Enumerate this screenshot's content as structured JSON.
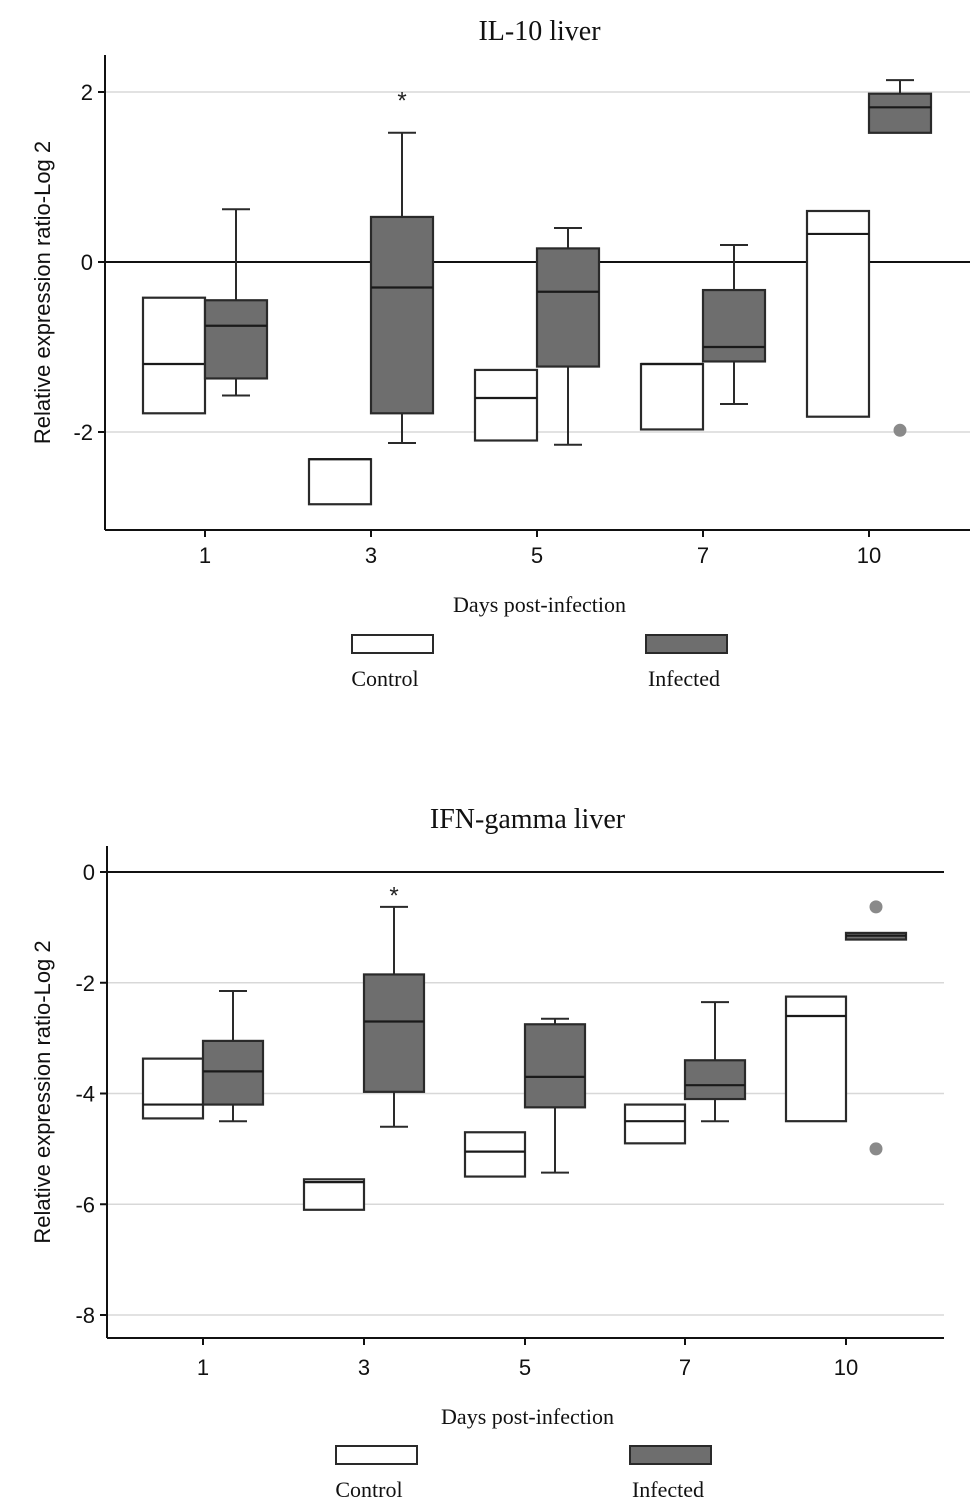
{
  "colors": {
    "control": "#ffffff",
    "infected": "#6e6e6e",
    "outline": "#2a2a2a",
    "grid": "#d8d8d8",
    "outlier": "#8a8a8a"
  },
  "chart_data": [
    {
      "type": "box",
      "title": "IL-10 liver",
      "xlabel": "Days post-infection",
      "ylabel": "Relative expression ratio-Log 2",
      "categories": [
        "1",
        "3",
        "5",
        "7",
        "10"
      ],
      "ylim": [
        -3.15,
        2.4
      ],
      "yticks": [
        2,
        0,
        -2
      ],
      "yticklabels": [
        "2",
        "0",
        "-2"
      ],
      "grid": true,
      "legend": "bottom",
      "annotations": [
        {
          "category": "3",
          "text": "*",
          "y": 1.95
        }
      ],
      "series": [
        {
          "name": "Control",
          "boxes": [
            {
              "q1": -1.78,
              "median": -1.2,
              "q3": -0.42,
              "whisker_low": -1.78,
              "whisker_high": -0.42,
              "outliers": []
            },
            {
              "q1": -2.85,
              "median": -2.32,
              "q3": -2.32,
              "whisker_low": -2.85,
              "whisker_high": -2.32,
              "outliers": []
            },
            {
              "q1": -2.1,
              "median": -1.6,
              "q3": -1.27,
              "whisker_low": -2.1,
              "whisker_high": -1.27,
              "outliers": []
            },
            {
              "q1": -1.97,
              "median": -1.2,
              "q3": -1.2,
              "whisker_low": -1.97,
              "whisker_high": -1.2,
              "outliers": []
            },
            {
              "q1": -1.82,
              "median": 0.33,
              "q3": 0.6,
              "whisker_low": -1.82,
              "whisker_high": 0.6,
              "outliers": []
            }
          ]
        },
        {
          "name": "Infected",
          "boxes": [
            {
              "q1": -1.37,
              "median": -0.75,
              "q3": -0.45,
              "whisker_low": -1.57,
              "whisker_high": 0.62,
              "outliers": []
            },
            {
              "q1": -1.78,
              "median": -0.3,
              "q3": 0.53,
              "whisker_low": -2.13,
              "whisker_high": 1.52,
              "outliers": []
            },
            {
              "q1": -1.23,
              "median": -0.35,
              "q3": 0.16,
              "whisker_low": -2.15,
              "whisker_high": 0.4,
              "outliers": []
            },
            {
              "q1": -1.17,
              "median": -1.0,
              "q3": -0.33,
              "whisker_low": -1.67,
              "whisker_high": 0.2,
              "outliers": []
            },
            {
              "q1": 1.52,
              "median": 1.82,
              "q3": 1.98,
              "whisker_low": 1.52,
              "whisker_high": 2.14,
              "outliers": [
                -1.98
              ]
            }
          ]
        }
      ]
    },
    {
      "type": "box",
      "title": "IFN-gamma liver",
      "xlabel": "Days post-infection",
      "ylabel": "Relative expression ratio-Log 2",
      "categories": [
        "1",
        "3",
        "5",
        "7",
        "10"
      ],
      "ylim": [
        -8.5,
        0.5
      ],
      "yticks": [
        0,
        -2,
        -4,
        -6,
        -8
      ],
      "yticklabels": [
        "0",
        "-2",
        "-4",
        "-6",
        "-8"
      ],
      "grid": true,
      "legend": "bottom",
      "annotations": [
        {
          "category": "3",
          "text": "*",
          "y": -0.35
        }
      ],
      "series": [
        {
          "name": "Control",
          "boxes": [
            {
              "q1": -4.45,
              "median": -4.2,
              "q3": -3.37,
              "whisker_low": -4.45,
              "whisker_high": -3.37,
              "outliers": []
            },
            {
              "q1": -6.1,
              "median": -5.6,
              "q3": -5.55,
              "whisker_low": -6.1,
              "whisker_high": -5.55,
              "outliers": []
            },
            {
              "q1": -5.5,
              "median": -5.05,
              "q3": -4.7,
              "whisker_low": -5.5,
              "whisker_high": -4.7,
              "outliers": []
            },
            {
              "q1": -4.9,
              "median": -4.5,
              "q3": -4.2,
              "whisker_low": -4.9,
              "whisker_high": -4.2,
              "outliers": []
            },
            {
              "q1": -4.5,
              "median": -2.6,
              "q3": -2.25,
              "whisker_low": -4.5,
              "whisker_high": -2.25,
              "outliers": []
            }
          ]
        },
        {
          "name": "Infected",
          "boxes": [
            {
              "q1": -4.2,
              "median": -3.6,
              "q3": -3.05,
              "whisker_low": -4.5,
              "whisker_high": -2.15,
              "outliers": []
            },
            {
              "q1": -3.97,
              "median": -2.7,
              "q3": -1.85,
              "whisker_low": -4.6,
              "whisker_high": -0.63,
              "outliers": []
            },
            {
              "q1": -4.25,
              "median": -3.7,
              "q3": -2.75,
              "whisker_low": -5.43,
              "whisker_high": -2.65,
              "outliers": []
            },
            {
              "q1": -4.1,
              "median": -3.85,
              "q3": -3.4,
              "whisker_low": -4.5,
              "whisker_high": -2.35,
              "outliers": []
            },
            {
              "q1": -1.22,
              "median": -1.15,
              "q3": -1.1,
              "whisker_low": -1.22,
              "whisker_high": -1.1,
              "outliers": [
                -0.63,
                -5.0
              ]
            }
          ]
        }
      ]
    }
  ]
}
